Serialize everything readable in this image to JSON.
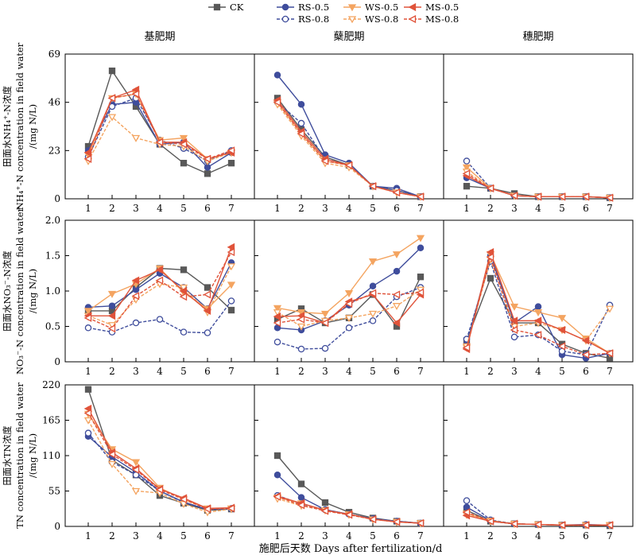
{
  "figure": {
    "xlabel": "施肥后天数 Days after fertilization/d",
    "panel_titles": [
      "基肥期",
      "蘖肥期",
      "穗肥期"
    ],
    "row_ylabels": [
      {
        "cn": "田面水NH₄⁺-N浓度",
        "en": "NH₄⁺-N concentration in field water",
        "unit": "/(mg N/L)"
      },
      {
        "cn": "田面水NO₃⁻-N浓度",
        "en": "NO₃⁻-N concentration in field water",
        "unit": "/(mg N/L)"
      },
      {
        "cn": "田面水TN浓度",
        "en": "TN concentration in field water",
        "unit": "/(mg N/L)"
      }
    ]
  },
  "legend": [
    {
      "name": "CK",
      "color": "#595959",
      "marker": "square",
      "filled": true,
      "dashed": false
    },
    {
      "name": "RS-0.5",
      "color": "#3f4d9c",
      "marker": "circle",
      "filled": true,
      "dashed": false
    },
    {
      "name": "RS-0.8",
      "color": "#3f4d9c",
      "marker": "circle",
      "filled": false,
      "dashed": true
    },
    {
      "name": "WS-0.5",
      "color": "#f4a460",
      "marker": "triangle-down",
      "filled": true,
      "dashed": false
    },
    {
      "name": "WS-0.8",
      "color": "#f4a460",
      "marker": "triangle-down",
      "filled": false,
      "dashed": true
    },
    {
      "name": "MS-0.5",
      "color": "#e0533a",
      "marker": "triangle-left",
      "filled": true,
      "dashed": false
    },
    {
      "name": "MS-0.8",
      "color": "#e0533a",
      "marker": "triangle-left",
      "filled": false,
      "dashed": true
    }
  ],
  "chart_data": [
    {
      "type": "line",
      "row": 0,
      "col": 0,
      "title": "基肥期",
      "ylim": [
        0,
        69
      ],
      "yticks": [
        "0",
        "23",
        "46",
        "69"
      ],
      "x": [
        1,
        2,
        3,
        4,
        5,
        6,
        7
      ],
      "series": [
        {
          "name": "CK",
          "values": [
            25,
            61,
            44,
            26,
            17,
            12,
            17
          ]
        },
        {
          "name": "RS-0.5",
          "values": [
            23,
            45,
            46,
            26,
            27,
            15,
            22
          ]
        },
        {
          "name": "RS-0.8",
          "values": [
            20,
            44,
            48,
            28,
            24,
            18,
            23
          ]
        },
        {
          "name": "WS-0.5",
          "values": [
            21,
            48,
            50,
            28,
            29,
            19,
            22
          ]
        },
        {
          "name": "WS-0.8",
          "values": [
            18,
            39,
            29,
            26,
            25,
            18,
            22
          ]
        },
        {
          "name": "MS-0.5",
          "values": [
            22,
            48,
            52,
            27,
            27,
            19,
            22
          ]
        },
        {
          "name": "MS-0.8",
          "values": [
            19,
            48,
            50,
            27,
            26,
            19,
            23
          ]
        }
      ]
    },
    {
      "type": "line",
      "row": 0,
      "col": 1,
      "title": "蘖肥期",
      "ylim": [
        0,
        69
      ],
      "x": [
        1,
        2,
        3,
        4,
        5,
        6,
        7
      ],
      "series": [
        {
          "name": "CK",
          "values": [
            48,
            33,
            20,
            16,
            6,
            4,
            1
          ]
        },
        {
          "name": "RS-0.5",
          "values": [
            59,
            45,
            21,
            17,
            6,
            5,
            1
          ]
        },
        {
          "name": "RS-0.8",
          "values": [
            46,
            36,
            19,
            16,
            6,
            4,
            1
          ]
        },
        {
          "name": "WS-0.5",
          "values": [
            46,
            31,
            18,
            16,
            6,
            3,
            1
          ]
        },
        {
          "name": "WS-0.8",
          "values": [
            45,
            30,
            17,
            15,
            6,
            3,
            1
          ]
        },
        {
          "name": "MS-0.5",
          "values": [
            47,
            32,
            19,
            16,
            6,
            3,
            1
          ]
        },
        {
          "name": "MS-0.8",
          "values": [
            46,
            31,
            18,
            16,
            6,
            3,
            1
          ]
        }
      ]
    },
    {
      "type": "line",
      "row": 0,
      "col": 2,
      "title": "穗肥期",
      "ylim": [
        0,
        69
      ],
      "x": [
        1,
        2,
        3,
        4,
        5,
        6,
        7
      ],
      "series": [
        {
          "name": "CK",
          "values": [
            6,
            5,
            2.5,
            1,
            1,
            1,
            0.5
          ]
        },
        {
          "name": "RS-0.5",
          "values": [
            10,
            5,
            1.5,
            1,
            1,
            1,
            0.5
          ]
        },
        {
          "name": "RS-0.8",
          "values": [
            18,
            5,
            1.5,
            1,
            1,
            1,
            0.5
          ]
        },
        {
          "name": "WS-0.5",
          "values": [
            15,
            5,
            1.5,
            1,
            1,
            1,
            0.5
          ]
        },
        {
          "name": "WS-0.8",
          "values": [
            13,
            5,
            1.5,
            1,
            1,
            1,
            0.5
          ]
        },
        {
          "name": "MS-0.5",
          "values": [
            11,
            5,
            1.5,
            1,
            1,
            1,
            0.5
          ]
        },
        {
          "name": "MS-0.8",
          "values": [
            12,
            5,
            1.5,
            1,
            1,
            1,
            0.5
          ]
        }
      ]
    },
    {
      "type": "line",
      "row": 1,
      "col": 0,
      "ylim": [
        0,
        2.0
      ],
      "yticks": [
        "0",
        "0.5",
        "1.0",
        "1.5",
        "2.0"
      ],
      "x": [
        1,
        2,
        3,
        4,
        5,
        6,
        7
      ],
      "series": [
        {
          "name": "CK",
          "values": [
            0.72,
            0.72,
            1.05,
            1.32,
            1.3,
            1.05,
            0.73
          ]
        },
        {
          "name": "RS-0.5",
          "values": [
            0.77,
            0.79,
            1.02,
            1.25,
            1.05,
            0.75,
            1.4
          ]
        },
        {
          "name": "RS-0.8",
          "values": [
            0.48,
            0.42,
            0.55,
            0.6,
            0.42,
            0.41,
            0.86
          ]
        },
        {
          "name": "WS-0.5",
          "values": [
            0.72,
            0.96,
            1.1,
            1.32,
            0.98,
            0.75,
            1.09
          ]
        },
        {
          "name": "WS-0.8",
          "values": [
            0.65,
            0.52,
            0.88,
            1.1,
            1.05,
            0.7,
            1.35
          ]
        },
        {
          "name": "MS-0.5",
          "values": [
            0.65,
            0.65,
            1.15,
            1.3,
            1.0,
            0.72,
            1.62
          ]
        },
        {
          "name": "MS-0.8",
          "values": [
            0.62,
            0.47,
            0.93,
            1.15,
            0.92,
            0.95,
            1.55
          ]
        }
      ]
    },
    {
      "type": "line",
      "row": 1,
      "col": 1,
      "ylim": [
        0,
        2.0
      ],
      "x": [
        1,
        2,
        3,
        4,
        5,
        6,
        7
      ],
      "series": [
        {
          "name": "CK",
          "values": [
            0.6,
            0.75,
            0.55,
            0.62,
            0.95,
            0.5,
            1.2
          ]
        },
        {
          "name": "RS-0.5",
          "values": [
            0.48,
            0.45,
            0.58,
            0.8,
            1.07,
            1.28,
            1.61
          ]
        },
        {
          "name": "RS-0.8",
          "values": [
            0.28,
            0.18,
            0.19,
            0.48,
            0.58,
            0.92,
            1.05
          ]
        },
        {
          "name": "WS-0.5",
          "values": [
            0.76,
            0.7,
            0.68,
            0.97,
            1.42,
            1.52,
            1.75
          ]
        },
        {
          "name": "WS-0.8",
          "values": [
            0.7,
            0.5,
            0.58,
            0.62,
            0.68,
            0.79,
            1.02
          ]
        },
        {
          "name": "MS-0.5",
          "values": [
            0.64,
            0.65,
            0.55,
            0.85,
            0.95,
            0.55,
            0.95
          ]
        },
        {
          "name": "MS-0.8",
          "values": [
            0.55,
            0.6,
            0.55,
            0.82,
            0.97,
            0.95,
            0.98
          ]
        }
      ]
    },
    {
      "type": "line",
      "row": 1,
      "col": 2,
      "ylim": [
        0,
        2.0
      ],
      "x": [
        1,
        2,
        3,
        4,
        5,
        6,
        7
      ],
      "series": [
        {
          "name": "CK",
          "values": [
            0.3,
            1.18,
            0.55,
            0.55,
            0.25,
            0.12,
            0.05
          ]
        },
        {
          "name": "RS-0.5",
          "values": [
            0.25,
            1.5,
            0.55,
            0.78,
            0.1,
            0.05,
            0.12
          ]
        },
        {
          "name": "RS-0.8",
          "values": [
            0.32,
            1.42,
            0.35,
            0.38,
            0.15,
            0.1,
            0.8
          ]
        },
        {
          "name": "WS-0.5",
          "values": [
            0.2,
            1.52,
            0.78,
            0.7,
            0.62,
            0.33,
            0.12
          ]
        },
        {
          "name": "WS-0.8",
          "values": [
            0.22,
            1.45,
            0.5,
            0.55,
            0.45,
            0.3,
            0.75
          ]
        },
        {
          "name": "MS-0.5",
          "values": [
            0.18,
            1.55,
            0.58,
            0.58,
            0.45,
            0.3,
            0.12
          ]
        },
        {
          "name": "MS-0.8",
          "values": [
            0.2,
            1.48,
            0.45,
            0.38,
            0.22,
            0.1,
            0.12
          ]
        }
      ]
    },
    {
      "type": "line",
      "row": 2,
      "col": 0,
      "ylim": [
        0,
        220
      ],
      "yticks": [
        "0",
        "55",
        "110",
        "165",
        "220"
      ],
      "x": [
        1,
        2,
        3,
        4,
        5,
        6,
        7
      ],
      "series": [
        {
          "name": "CK",
          "values": [
            213,
            103,
            80,
            48,
            36,
            25,
            27
          ]
        },
        {
          "name": "RS-0.5",
          "values": [
            140,
            108,
            84,
            55,
            38,
            26,
            28
          ]
        },
        {
          "name": "RS-0.8",
          "values": [
            145,
            100,
            80,
            55,
            37,
            27,
            27
          ]
        },
        {
          "name": "WS-0.5",
          "values": [
            175,
            120,
            100,
            60,
            42,
            28,
            28
          ]
        },
        {
          "name": "WS-0.8",
          "values": [
            165,
            97,
            55,
            52,
            35,
            22,
            27
          ]
        },
        {
          "name": "MS-0.5",
          "values": [
            183,
            115,
            90,
            58,
            44,
            28,
            29
          ]
        },
        {
          "name": "MS-0.8",
          "values": [
            176,
            112,
            88,
            57,
            42,
            27,
            28
          ]
        }
      ]
    },
    {
      "type": "line",
      "row": 2,
      "col": 1,
      "ylim": [
        0,
        220
      ],
      "x": [
        1,
        2,
        3,
        4,
        5,
        6,
        7
      ],
      "series": [
        {
          "name": "CK",
          "values": [
            110,
            66,
            37,
            22,
            13,
            8,
            5
          ]
        },
        {
          "name": "RS-0.5",
          "values": [
            80,
            45,
            26,
            19,
            12,
            8,
            5
          ]
        },
        {
          "name": "RS-0.8",
          "values": [
            48,
            35,
            26,
            19,
            12,
            8,
            5
          ]
        },
        {
          "name": "WS-0.5",
          "values": [
            45,
            36,
            25,
            19,
            11,
            7,
            5
          ]
        },
        {
          "name": "WS-0.8",
          "values": [
            43,
            32,
            25,
            18,
            11,
            7,
            5
          ]
        },
        {
          "name": "MS-0.5",
          "values": [
            47,
            36,
            25,
            19,
            11,
            7,
            5
          ]
        },
        {
          "name": "MS-0.8",
          "values": [
            46,
            33,
            24,
            18,
            11,
            7,
            5
          ]
        }
      ]
    },
    {
      "type": "line",
      "row": 2,
      "col": 2,
      "ylim": [
        0,
        220
      ],
      "x": [
        1,
        2,
        3,
        4,
        5,
        6,
        7
      ],
      "series": [
        {
          "name": "CK",
          "values": [
            25,
            8,
            4,
            3,
            2,
            2,
            1
          ]
        },
        {
          "name": "RS-0.5",
          "values": [
            30,
            9,
            4,
            3,
            2,
            3,
            2
          ]
        },
        {
          "name": "RS-0.8",
          "values": [
            40,
            10,
            4,
            3,
            2,
            2,
            2
          ]
        },
        {
          "name": "WS-0.5",
          "values": [
            20,
            9,
            4,
            3,
            2,
            2,
            2
          ]
        },
        {
          "name": "WS-0.8",
          "values": [
            18,
            8,
            4,
            3,
            2,
            2,
            2
          ]
        },
        {
          "name": "MS-0.5",
          "values": [
            17,
            8,
            4,
            3,
            2,
            2,
            2
          ]
        },
        {
          "name": "MS-0.8",
          "values": [
            22,
            8,
            4,
            3,
            2,
            2,
            2
          ]
        }
      ]
    }
  ]
}
